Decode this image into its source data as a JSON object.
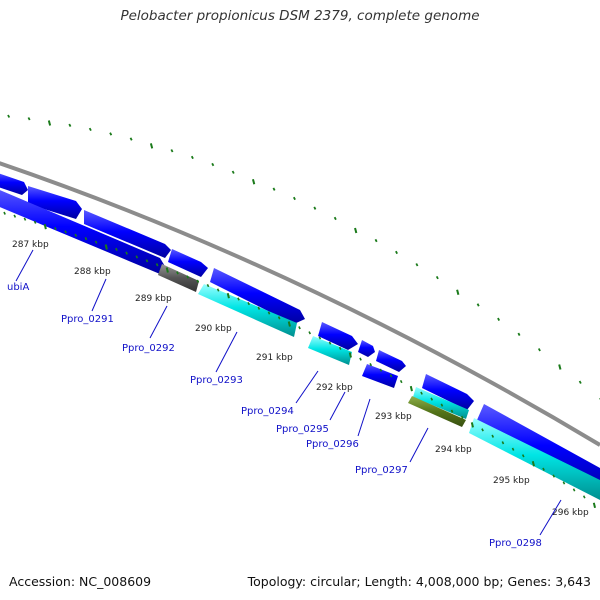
{
  "title": "Pelobacter propionicus DSM 2379, complete genome",
  "footer": {
    "accession": "Accession: NC_008609",
    "summary": "Topology: circular; Length: 4,008,000 bp; Genes: 3,643"
  },
  "colors": {
    "forward_cds": "#0a0aff",
    "reverse_cds": "#0a0aff",
    "rna": "#00ffff",
    "pseudo": "#555555",
    "other": "#6b8e23",
    "backbone": "#888888",
    "tick": "#1a7a1a",
    "gene_label": "#1010c8"
  },
  "kbp_labels": [
    "287 kbp",
    "288 kbp",
    "289 kbp",
    "290 kbp",
    "291 kbp",
    "292 kbp",
    "293 kbp",
    "294 kbp",
    "295 kbp",
    "296 kbp"
  ],
  "gene_labels": [
    "ubiA",
    "Ppro_0291",
    "Ppro_0292",
    "Ppro_0293",
    "Ppro_0294",
    "Ppro_0295",
    "Ppro_0296",
    "Ppro_0297",
    "Ppro_0298"
  ]
}
